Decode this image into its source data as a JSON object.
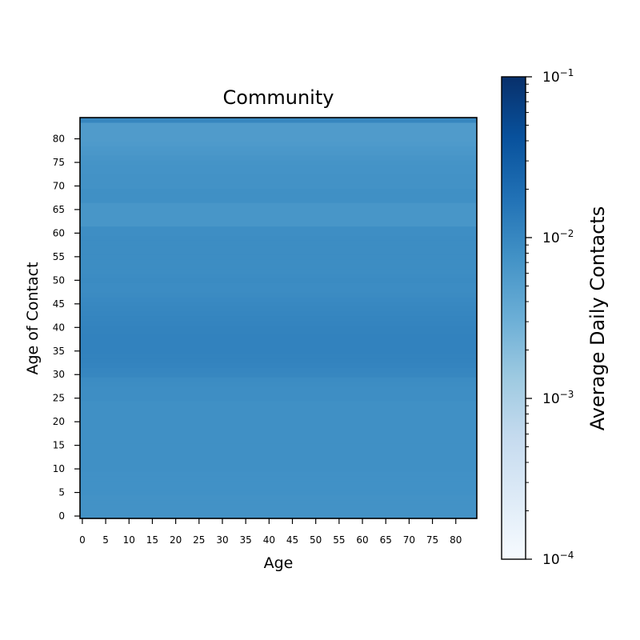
{
  "chart_data": {
    "type": "heatmap",
    "title": "Community",
    "xlabel": "Age",
    "ylabel": "Age of Contact",
    "colorbar_label": "Average Daily Contacts",
    "colormap": "Blues",
    "color_scale": "log",
    "color_range": [
      0.0001,
      0.1
    ],
    "x_ages": [
      0,
      84
    ],
    "y_ages": [
      0,
      84
    ],
    "x_ticks": [
      "0",
      "5",
      "10",
      "15",
      "20",
      "25",
      "30",
      "35",
      "40",
      "45",
      "50",
      "55",
      "60",
      "65",
      "70",
      "75",
      "80"
    ],
    "y_ticks": [
      "0",
      "5",
      "10",
      "15",
      "20",
      "25",
      "30",
      "35",
      "40",
      "45",
      "50",
      "55",
      "60",
      "65",
      "70",
      "75",
      "80"
    ],
    "colorbar_ticks": [
      {
        "base": "10",
        "exp": "−1",
        "value": 0.1
      },
      {
        "base": "10",
        "exp": "−2",
        "value": 0.01
      },
      {
        "base": "10",
        "exp": "−3",
        "value": 0.001
      },
      {
        "base": "10",
        "exp": "−4",
        "value": 0.0001
      }
    ],
    "row_values_by_contact_age": [
      0.0074,
      0.0074,
      0.0074,
      0.0074,
      0.0074,
      0.0076,
      0.0076,
      0.0076,
      0.0076,
      0.0076,
      0.0078,
      0.0078,
      0.0078,
      0.0078,
      0.0078,
      0.008,
      0.008,
      0.008,
      0.008,
      0.008,
      0.008,
      0.008,
      0.008,
      0.008,
      0.008,
      0.0084,
      0.0084,
      0.0084,
      0.0086,
      0.0088,
      0.01,
      0.0104,
      0.0108,
      0.011,
      0.0112,
      0.0114,
      0.0114,
      0.0114,
      0.0114,
      0.0112,
      0.011,
      0.0108,
      0.0106,
      0.0104,
      0.01,
      0.0098,
      0.0094,
      0.009,
      0.0088,
      0.0088,
      0.009,
      0.0088,
      0.0086,
      0.0086,
      0.0086,
      0.0086,
      0.0086,
      0.0086,
      0.0086,
      0.0086,
      0.0084,
      0.0084,
      0.0066,
      0.0066,
      0.0066,
      0.0066,
      0.0066,
      0.008,
      0.008,
      0.008,
      0.0074,
      0.0074,
      0.0074,
      0.0072,
      0.0072,
      0.007,
      0.0068,
      0.0064,
      0.0062,
      0.0058,
      0.0056,
      0.0056,
      0.0056,
      0.0056,
      0.01
    ]
  }
}
